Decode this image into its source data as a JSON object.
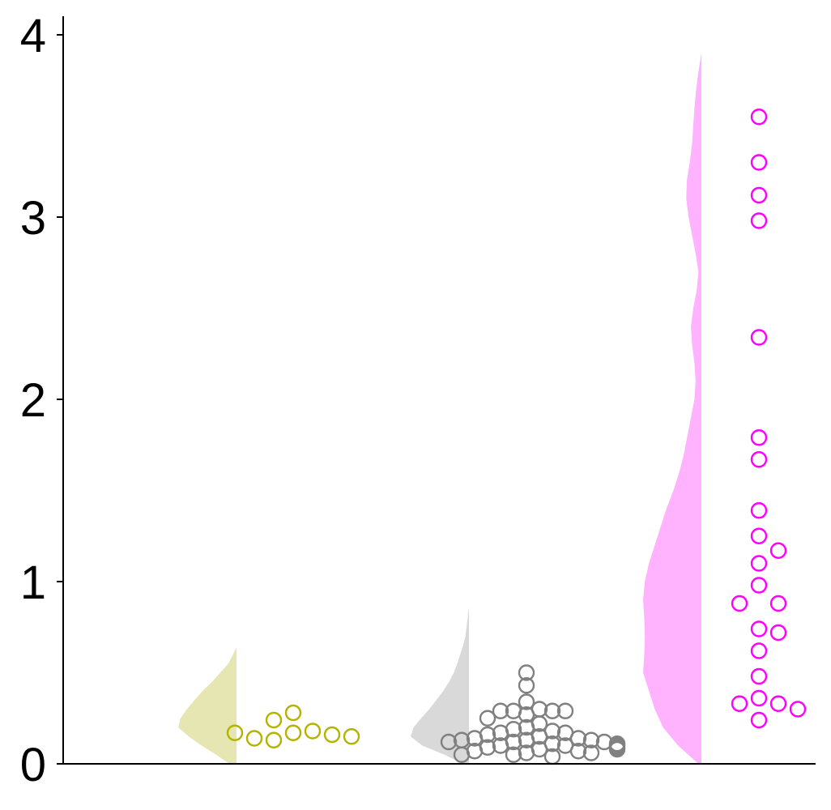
{
  "chart_data": {
    "type": "violin-strip",
    "title": "",
    "xlabel": "",
    "ylabel": "",
    "ylim": [
      0,
      4.1
    ],
    "y_ticks": [
      0,
      1,
      2,
      3,
      4
    ],
    "y_tick_labels": [
      "0",
      "1",
      "2",
      "3",
      "4"
    ],
    "grid": false,
    "legend": "none",
    "groups": [
      {
        "fill_color": "#e6e6b3",
        "point_color": "#b3b300",
        "density": [
          [
            0,
            0.12
          ],
          [
            0.05,
            0.35
          ],
          [
            0.1,
            0.6
          ],
          [
            0.15,
            0.82
          ],
          [
            0.2,
            1.0
          ],
          [
            0.25,
            0.96
          ],
          [
            0.3,
            0.85
          ],
          [
            0.35,
            0.72
          ],
          [
            0.4,
            0.58
          ],
          [
            0.45,
            0.42
          ],
          [
            0.5,
            0.28
          ],
          [
            0.55,
            0.14
          ],
          [
            0.6,
            0.06
          ],
          [
            0.64,
            0.0
          ]
        ],
        "values": [
          0.17,
          0.18,
          0.28,
          0.24,
          0.16,
          0.14,
          0.13,
          0.15,
          0.17
        ]
      },
      {
        "fill_color": "#d9d9d9",
        "point_color": "#808080",
        "density": [
          [
            0,
            0.1
          ],
          [
            0.05,
            0.42
          ],
          [
            0.1,
            0.8
          ],
          [
            0.15,
            1.0
          ],
          [
            0.2,
            0.95
          ],
          [
            0.25,
            0.82
          ],
          [
            0.3,
            0.68
          ],
          [
            0.35,
            0.56
          ],
          [
            0.4,
            0.44
          ],
          [
            0.45,
            0.34
          ],
          [
            0.5,
            0.26
          ],
          [
            0.55,
            0.2
          ],
          [
            0.6,
            0.15
          ],
          [
            0.65,
            0.1
          ],
          [
            0.7,
            0.06
          ],
          [
            0.78,
            0.03
          ],
          [
            0.86,
            0.0
          ]
        ],
        "values": [
          0.5,
          0.43,
          0.34,
          0.3,
          0.29,
          0.29,
          0.29,
          0.29,
          0.27,
          0.25,
          0.22,
          0.2,
          0.19,
          0.18,
          0.17,
          0.17,
          0.16,
          0.15,
          0.14,
          0.14,
          0.13,
          0.13,
          0.13,
          0.12,
          0.12,
          0.12,
          0.11,
          0.11,
          0.1,
          0.1,
          0.1,
          0.09,
          0.09,
          0.08,
          0.08,
          0.07,
          0.07,
          0.06,
          0.06,
          0.05,
          0.05,
          0.04
        ]
      },
      {
        "fill_color": "#ffb3ff",
        "point_color": "#ff00ff",
        "density": [
          [
            0,
            0.05
          ],
          [
            0.1,
            0.4
          ],
          [
            0.2,
            0.66
          ],
          [
            0.3,
            0.8
          ],
          [
            0.4,
            0.9
          ],
          [
            0.5,
            1.0
          ],
          [
            0.6,
            0.98
          ],
          [
            0.7,
            0.97
          ],
          [
            0.8,
            0.98
          ],
          [
            0.9,
            1.0
          ],
          [
            1.0,
            0.97
          ],
          [
            1.1,
            0.9
          ],
          [
            1.2,
            0.8
          ],
          [
            1.3,
            0.7
          ],
          [
            1.4,
            0.6
          ],
          [
            1.5,
            0.48
          ],
          [
            1.6,
            0.38
          ],
          [
            1.7,
            0.3
          ],
          [
            1.8,
            0.24
          ],
          [
            1.9,
            0.18
          ],
          [
            2.0,
            0.12
          ],
          [
            2.1,
            0.1
          ],
          [
            2.2,
            0.12
          ],
          [
            2.3,
            0.16
          ],
          [
            2.4,
            0.18
          ],
          [
            2.5,
            0.14
          ],
          [
            2.6,
            0.08
          ],
          [
            2.7,
            0.05
          ],
          [
            2.8,
            0.1
          ],
          [
            2.9,
            0.16
          ],
          [
            3.0,
            0.22
          ],
          [
            3.1,
            0.26
          ],
          [
            3.2,
            0.25
          ],
          [
            3.3,
            0.2
          ],
          [
            3.4,
            0.16
          ],
          [
            3.5,
            0.14
          ],
          [
            3.6,
            0.12
          ],
          [
            3.7,
            0.09
          ],
          [
            3.8,
            0.05
          ],
          [
            3.9,
            0.0
          ]
        ],
        "values": [
          3.55,
          3.3,
          3.12,
          2.98,
          2.34,
          1.79,
          1.67,
          1.39,
          1.25,
          1.17,
          1.1,
          0.98,
          0.88,
          0.88,
          0.74,
          0.72,
          0.62,
          0.48,
          0.36,
          0.33,
          0.33,
          0.3,
          0.24
        ]
      }
    ]
  }
}
